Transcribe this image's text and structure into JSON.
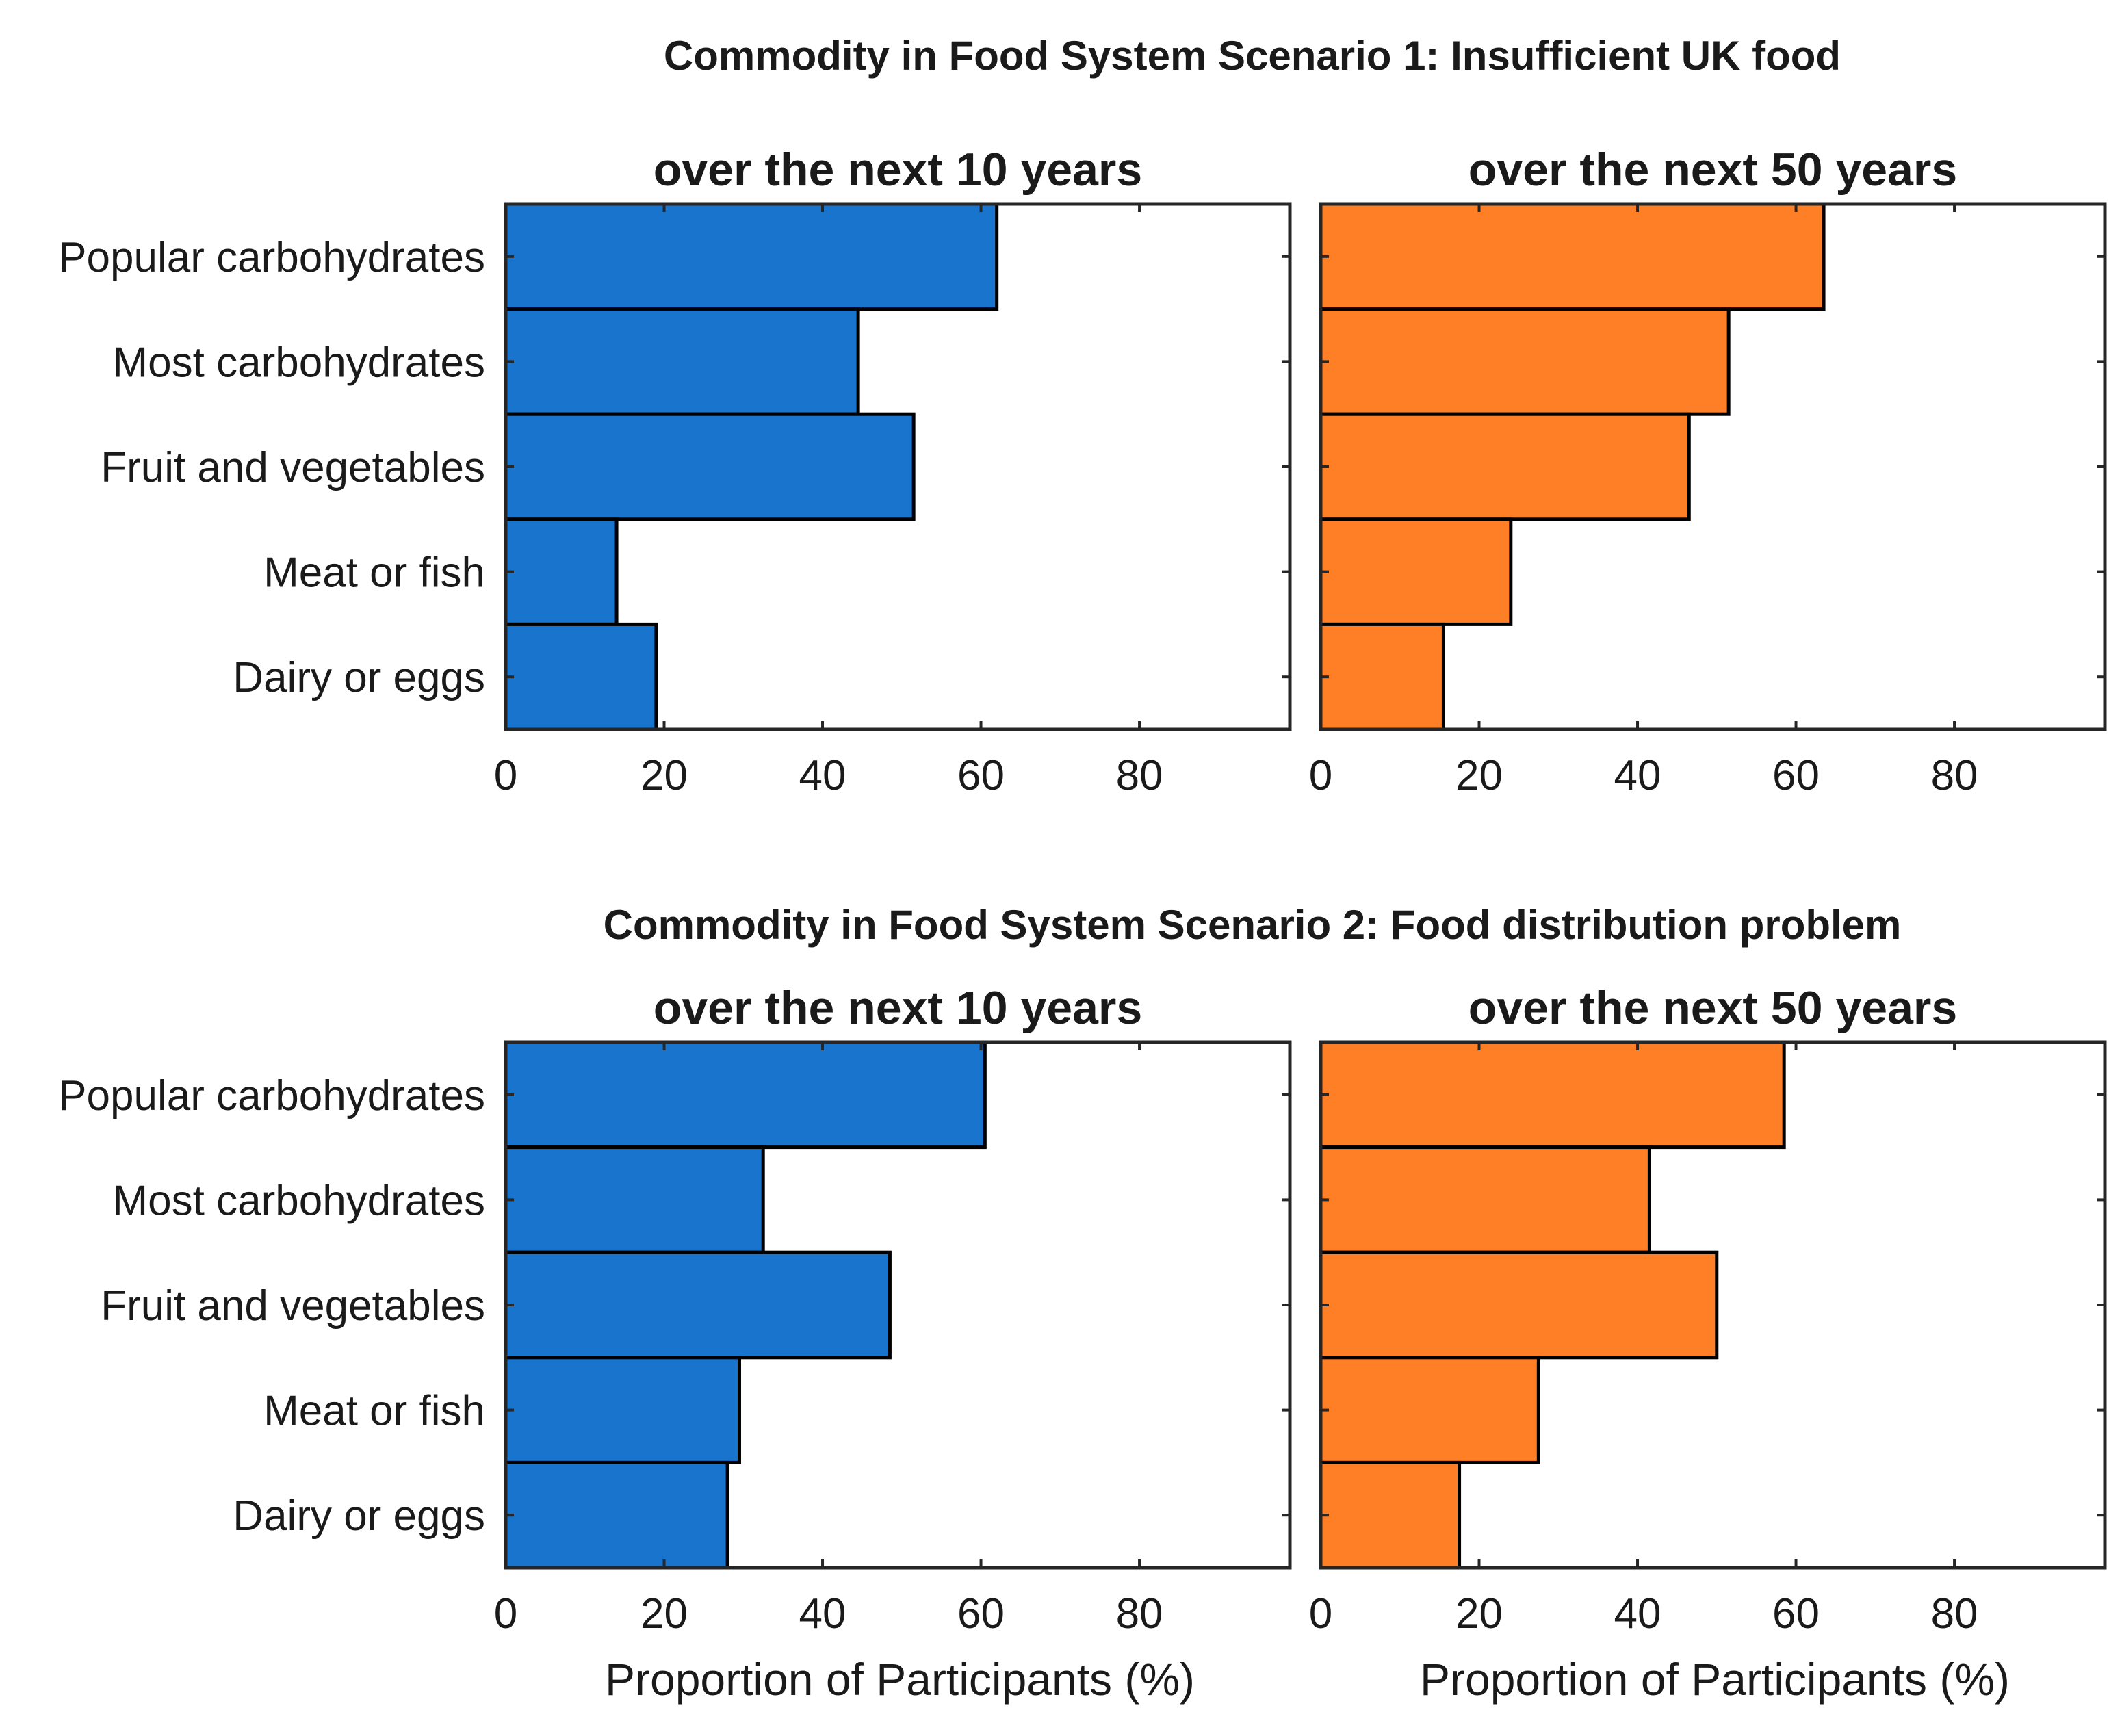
{
  "colors": {
    "ten_year": "#1874CD",
    "fifty_year": "#FF7F27"
  },
  "scenarios": [
    {
      "title": "Commodity in Food System Scenario 1: Insufficient UK food"
    },
    {
      "title": "Commodity in Food System Scenario 2: Food distribution problem"
    }
  ],
  "chart_data": [
    {
      "type": "bar",
      "orientation": "horizontal",
      "title": "over the next 10 years",
      "scenario": "Commodity in Food System Scenario 1: Insufficient UK food",
      "categories": [
        "Popular carbohydrates",
        "Most carbohydrates",
        "Fruit and vegetables",
        "Meat or fish",
        "Dairy or eggs"
      ],
      "values": [
        62,
        44.5,
        51.5,
        14,
        19
      ],
      "xlim": [
        0,
        99
      ],
      "xticks": [
        0,
        20,
        40,
        60,
        80
      ],
      "xlabel": "",
      "color": "#1874CD"
    },
    {
      "type": "bar",
      "orientation": "horizontal",
      "title": "over the next 50 years",
      "scenario": "Commodity in Food System Scenario 1: Insufficient UK food",
      "categories": [
        "Popular carbohydrates",
        "Most carbohydrates",
        "Fruit and vegetables",
        "Meat or fish",
        "Dairy or eggs"
      ],
      "values": [
        63.5,
        51.5,
        46.5,
        24,
        15.5
      ],
      "xlim": [
        0,
        99
      ],
      "xticks": [
        0,
        20,
        40,
        60,
        80
      ],
      "xlabel": "",
      "color": "#FF7F27"
    },
    {
      "type": "bar",
      "orientation": "horizontal",
      "title": "over the next 10 years",
      "scenario": "Commodity in Food System Scenario 2: Food distribution problem",
      "categories": [
        "Popular carbohydrates",
        "Most carbohydrates",
        "Fruit and vegetables",
        "Meat or fish",
        "Dairy or eggs"
      ],
      "values": [
        60.5,
        32.5,
        48.5,
        29.5,
        28
      ],
      "xlim": [
        0,
        99
      ],
      "xticks": [
        0,
        20,
        40,
        60,
        80
      ],
      "xlabel": "Proportion of Participants (%)",
      "color": "#1874CD"
    },
    {
      "type": "bar",
      "orientation": "horizontal",
      "title": "over the next 50 years",
      "scenario": "Commodity in Food System Scenario 2: Food distribution problem",
      "categories": [
        "Popular carbohydrates",
        "Most carbohydrates",
        "Fruit and vegetables",
        "Meat or fish",
        "Dairy or eggs"
      ],
      "values": [
        58.5,
        41.5,
        50,
        27.5,
        17.5
      ],
      "xlim": [
        0,
        99
      ],
      "xticks": [
        0,
        20,
        40,
        60,
        80
      ],
      "xlabel": "Proportion of Participants (%)",
      "color": "#FF7F27"
    }
  ]
}
